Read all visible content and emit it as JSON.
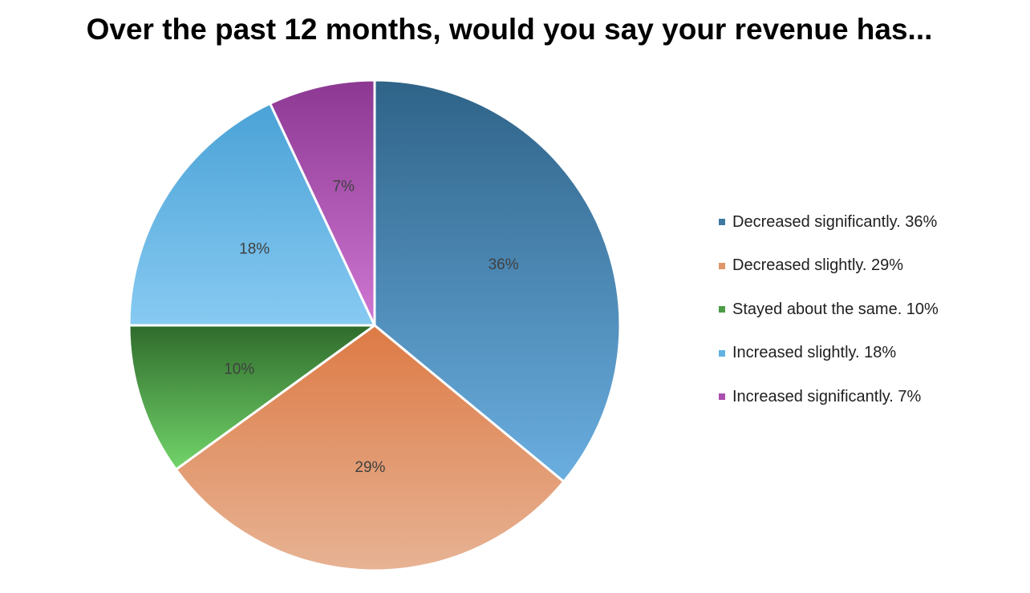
{
  "chart_data": {
    "type": "pie",
    "title": "Over the past 12 months, would you say your revenue has...",
    "start_angle": "12 o'clock",
    "direction": "clockwise",
    "legend_position": "right",
    "slices": [
      {
        "label": "Decreased significantly",
        "value": 36,
        "data_label": "36%",
        "legend_text": "Decreased significantly. 36%",
        "color_top": "#2f6388",
        "color_bottom": "#6aaee0",
        "swatch": "#3f79a3"
      },
      {
        "label": "Decreased slightly",
        "value": 29,
        "data_label": "29%",
        "legend_text": "Decreased slightly. 29%",
        "color_top": "#dd7a45",
        "color_bottom": "#e7b394",
        "swatch": "#e0956a"
      },
      {
        "label": "Stayed about the same",
        "value": 10,
        "data_label": "10%",
        "legend_text": "Stayed about the same. 10%",
        "color_top": "#2f6b2c",
        "color_bottom": "#72d46a",
        "swatch": "#4c9b45"
      },
      {
        "label": "Increased slightly",
        "value": 18,
        "data_label": "18%",
        "legend_text": "Increased slightly. 18%",
        "color_top": "#4aa2d6",
        "color_bottom": "#87caf2",
        "swatch": "#62b2e4"
      },
      {
        "label": "Increased significantly",
        "value": 7,
        "data_label": "7%",
        "legend_text": "Increased significantly. 7%",
        "color_top": "#8c3893",
        "color_bottom": "#cf77d2",
        "swatch": "#a94fb0"
      }
    ]
  }
}
